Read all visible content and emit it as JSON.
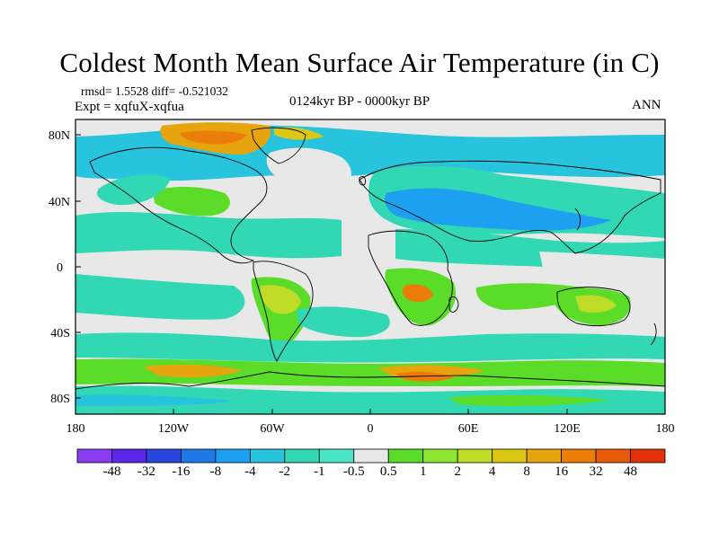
{
  "title": "Coldest Month Mean Surface Air Temperature (in C)",
  "stats": "rmsd= 1.5528  diff= -0.521032",
  "expt": "Expt = xqfuX-xqfua",
  "period": "0124kyr BP - 0000kyr BP",
  "season": "ANN",
  "lat_labels": [
    "80N",
    "40N",
    "0",
    "40S",
    "80S"
  ],
  "lon_labels": [
    "180",
    "120W",
    "60W",
    "0",
    "60E",
    "120E",
    "180"
  ],
  "colorbar": {
    "colors": [
      "#8c3cf0",
      "#5a28e6",
      "#2846dc",
      "#1e78e6",
      "#1ea0f0",
      "#28c3dc",
      "#32d7b4",
      "#4be6c8",
      "#e8e8e8",
      "#5adc28",
      "#8ce632",
      "#bedc28",
      "#dcc814",
      "#e6a50f",
      "#eb7d0a",
      "#e65a0a",
      "#e1320a"
    ],
    "labels": [
      "-48",
      "-32",
      "-16",
      "-8",
      "-4",
      "-2",
      "-1",
      "-0.5",
      "0.5",
      "1",
      "2",
      "4",
      "8",
      "16",
      "32",
      "48"
    ]
  },
  "map_colors": {
    "ocean_neutral": "#e8e8e8",
    "teal": "#32d7b4",
    "cyan": "#28c3dc",
    "blue": "#1ea0f0",
    "green": "#5adc28",
    "yellowgreen": "#bedc28",
    "orange": "#eb7d0a",
    "red": "#e65a0a",
    "coast": "#000000"
  }
}
